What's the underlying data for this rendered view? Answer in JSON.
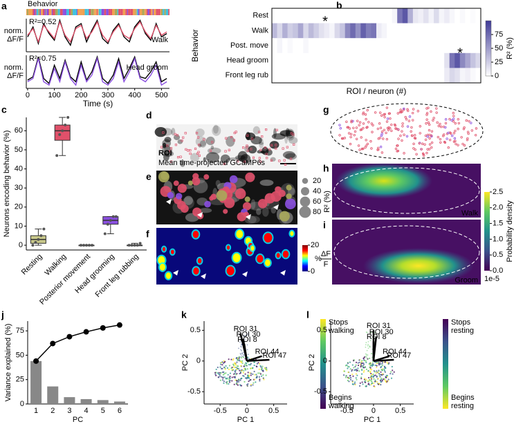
{
  "chart_data": [
    {
      "type": "line",
      "panel": "a",
      "behavior_label": "Behavior",
      "ylabel": [
        "norm.",
        "ΔF/F"
      ],
      "annotation": "R²=0.52",
      "x": [
        0,
        20,
        40,
        60,
        80,
        100,
        120,
        140,
        160,
        180,
        200,
        220,
        240,
        260,
        280,
        300,
        320,
        340,
        360,
        380,
        400,
        420,
        440,
        460,
        480,
        500,
        520
      ],
      "series": [
        {
          "color": "#000000",
          "values": [
            0.45,
            0.75,
            0.25,
            0.85,
            0.55,
            0.35,
            0.95,
            0.45,
            0.2,
            0.75,
            0.85,
            0.3,
            0.65,
            0.95,
            0.4,
            0.25,
            0.65,
            0.85,
            0.45,
            0.3,
            0.75,
            0.95,
            0.55,
            0.35,
            0.85,
            0.45,
            0.55
          ]
        },
        {
          "name": "Walk",
          "color": "#e0506a",
          "values": [
            0.5,
            0.7,
            0.3,
            0.8,
            0.6,
            0.4,
            0.9,
            0.5,
            0.3,
            0.7,
            0.8,
            0.4,
            0.6,
            0.9,
            0.5,
            0.3,
            0.6,
            0.8,
            0.5,
            0.4,
            0.7,
            0.9,
            0.6,
            0.4,
            0.8,
            0.5,
            0.6
          ]
        }
      ],
      "xlim": [
        -5,
        530
      ],
      "ylim": [
        0,
        1
      ]
    },
    {
      "type": "line",
      "ylabel": [
        "norm.",
        "ΔF/F"
      ],
      "annotation": "R²=0.75",
      "x": [
        0,
        20,
        40,
        60,
        80,
        100,
        120,
        140,
        160,
        180,
        200,
        220,
        240,
        260,
        280,
        300,
        320,
        340,
        360,
        380,
        400,
        420,
        440,
        460,
        480,
        500,
        520
      ],
      "series": [
        {
          "color": "#000000",
          "values": [
            0.25,
            0.35,
            0.95,
            0.3,
            0.15,
            0.7,
            0.3,
            0.85,
            0.35,
            0.2,
            0.8,
            0.25,
            0.5,
            0.95,
            0.3,
            0.15,
            0.4,
            0.9,
            0.3,
            0.6,
            0.95,
            0.35,
            0.3,
            0.5,
            0.8,
            0.2,
            0.3
          ]
        },
        {
          "name": "Head groom",
          "color": "#8a4fe0",
          "values": [
            0.2,
            0.3,
            0.9,
            0.2,
            0.1,
            0.6,
            0.2,
            0.8,
            0.3,
            0.1,
            0.7,
            0.2,
            0.4,
            0.9,
            0.2,
            0.1,
            0.3,
            0.8,
            0.2,
            0.5,
            0.9,
            0.3,
            0.2,
            0.4,
            0.7,
            0.1,
            0.2
          ]
        }
      ],
      "xlim": [
        -5,
        530
      ],
      "ylim": [
        0,
        1
      ],
      "xticks": [
        0,
        100,
        200,
        300,
        400,
        500
      ],
      "xlabel": "Time (s)"
    },
    {
      "type": "heatmap",
      "panel": "b",
      "ylabel": "Behavior",
      "xlabel": "ROI / neuron (#)",
      "categories": [
        "Rest",
        "Walk",
        "Post. move",
        "Head groom",
        "Front leg rub"
      ],
      "category_colors": [
        "#a8a85a",
        "#e0506a",
        "#f0a050",
        "#8a4fe0",
        "#40c0e0"
      ],
      "values": [
        [
          0,
          0,
          0,
          0,
          0,
          0,
          0,
          0,
          0,
          0,
          0,
          0,
          0,
          0,
          0,
          0,
          0,
          0,
          0,
          0,
          0,
          0,
          0,
          5,
          70,
          85,
          40,
          12,
          8,
          15,
          6,
          18,
          5,
          10,
          4,
          0,
          3,
          0,
          2,
          0
        ],
        [
          35,
          20,
          40,
          25,
          30,
          45,
          20,
          35,
          25,
          15,
          10,
          5,
          20,
          30,
          60,
          75,
          55,
          80,
          65,
          70,
          10,
          5,
          0,
          0,
          0,
          0,
          0,
          0,
          0,
          0,
          0,
          0,
          0,
          0,
          0,
          0,
          0,
          0,
          0,
          0
        ],
        [
          0,
          5,
          0,
          3,
          0,
          0,
          4,
          0,
          0,
          0,
          0,
          0,
          0,
          0,
          0,
          0,
          0,
          0,
          0,
          0,
          0,
          0,
          0,
          0,
          0,
          0,
          0,
          0,
          0,
          0,
          0,
          0,
          0,
          0,
          0,
          0,
          0,
          0,
          0,
          0
        ],
        [
          0,
          0,
          0,
          0,
          0,
          0,
          0,
          0,
          0,
          0,
          0,
          0,
          0,
          0,
          0,
          0,
          0,
          0,
          0,
          0,
          0,
          0,
          0,
          0,
          0,
          0,
          0,
          0,
          0,
          0,
          0,
          0,
          0,
          15,
          70,
          85,
          60,
          45,
          30,
          20
        ],
        [
          0,
          0,
          0,
          0,
          0,
          0,
          0,
          0,
          0,
          0,
          0,
          0,
          0,
          0,
          0,
          0,
          0,
          0,
          0,
          0,
          0,
          0,
          0,
          0,
          0,
          0,
          0,
          0,
          0,
          0,
          0,
          0,
          0,
          10,
          20,
          15,
          5,
          8,
          3,
          0
        ]
      ],
      "cmap": [
        "#ffffff",
        "#3f3a96"
      ],
      "clim": [
        0,
        100
      ],
      "cticks": [
        0,
        25,
        50,
        75
      ],
      "colorbar_label": "R² (%)",
      "annotations": [
        {
          "text": "*",
          "color": "#e0506a"
        },
        {
          "text": "*",
          "color": "#8a4fe0"
        }
      ]
    },
    {
      "type": "box",
      "panel": "c",
      "ylabel": "Neurons encoding behavior (%)",
      "categories": [
        "Resting",
        "Walking",
        "Posterior movement",
        "Head grooming",
        "Front leg rubbing"
      ],
      "colors": [
        "#c8c88a",
        "#e0506a",
        "#f0a050",
        "#8a4fe0",
        "#40c0e0"
      ],
      "boxes": [
        {
          "min": 0,
          "q1": 1,
          "median": 3,
          "q3": 5,
          "max": 8.5
        },
        {
          "min": 47,
          "q1": 55,
          "median": 60,
          "q3": 63,
          "max": 67
        },
        {
          "min": 0,
          "q1": 0,
          "median": 0,
          "q3": 0,
          "max": 0
        },
        {
          "min": 6,
          "q1": 11,
          "median": 13,
          "q3": 15,
          "max": 15
        },
        {
          "min": 0,
          "q1": 0,
          "median": 0,
          "q3": 0,
          "max": 1
        }
      ],
      "points": [
        [
          0,
          1.5,
          3,
          5,
          8.5
        ],
        [
          47,
          58,
          60,
          63,
          67
        ],
        [
          0,
          0,
          0,
          0,
          0
        ],
        [
          6,
          11,
          13,
          15,
          15
        ],
        [
          0,
          0,
          0,
          0,
          1
        ]
      ],
      "ylim": [
        -2.5,
        67
      ],
      "yticks": [
        0,
        10,
        20,
        30,
        40,
        50,
        60
      ]
    },
    {
      "type": "bar",
      "panel": "j",
      "ylabel": "Variance explained (%)",
      "xlabel": "PC",
      "categories": [
        1,
        2,
        3,
        4,
        5,
        6
      ],
      "values": [
        44,
        18,
        7,
        5,
        4,
        2.5
      ],
      "line_values": [
        44,
        62,
        69,
        74,
        78,
        81
      ],
      "color": "#888888",
      "line_color": "#000000",
      "ylim": [
        0,
        85
      ],
      "yticks": [
        0,
        25,
        50,
        75
      ]
    },
    {
      "type": "biplot",
      "panel": "k",
      "xlabel": "PC 1",
      "ylabel": "PC 2",
      "xlim": [
        -0.8,
        0.75
      ],
      "ylim": [
        -0.7,
        0.65
      ],
      "xticks": [
        -0.5,
        0,
        0.5
      ],
      "yticks": [
        -0.5,
        0,
        0.5
      ],
      "loadings": [
        {
          "name": "ROI 31",
          "x": -0.12,
          "y": 0.45
        },
        {
          "name": "ROI 30",
          "x": -0.07,
          "y": 0.36
        },
        {
          "name": "ROI 8",
          "x": -0.05,
          "y": 0.28
        },
        {
          "name": "ROI 44",
          "x": 0.28,
          "y": 0.08
        },
        {
          "name": "ROI 47",
          "x": 0.42,
          "y": 0.02
        }
      ],
      "colorbar_colors": [
        "#fde725",
        "#5ec962",
        "#21918c",
        "#3b528b",
        "#440154"
      ],
      "colorbar_top": [
        "Stops",
        "walking"
      ],
      "colorbar_bottom": [
        "Begins",
        "walking"
      ]
    },
    {
      "type": "biplot",
      "panel": "l",
      "xlabel": "PC 1",
      "ylabel": "PC 2",
      "xlim": [
        -0.8,
        0.75
      ],
      "ylim": [
        -0.7,
        0.65
      ],
      "xticks": [
        -0.5,
        0,
        0.5
      ],
      "yticks": [
        -0.5,
        0,
        0.5
      ],
      "loadings": [
        {
          "name": "ROI 31",
          "x": 0.0,
          "y": 0.5
        },
        {
          "name": "ROI 30",
          "x": 0.05,
          "y": 0.4
        },
        {
          "name": "ROI 8",
          "x": 0.0,
          "y": 0.32
        },
        {
          "name": "ROI 44",
          "x": 0.3,
          "y": 0.08
        },
        {
          "name": "ROI 47",
          "x": 0.38,
          "y": 0.02
        }
      ],
      "colorbar_colors": [
        "#440154",
        "#3b528b",
        "#21918c",
        "#5ec962",
        "#fde725"
      ],
      "colorbar_top": [
        "Stops",
        "resting"
      ],
      "colorbar_bottom": [
        "Begins",
        "resting"
      ]
    }
  ],
  "images": [
    {
      "panel": "d",
      "labels": [
        "ROI",
        "Mean time-projected GCaMP6s"
      ]
    },
    {
      "panel": "e",
      "size_legend": {
        "values": [
          20,
          40,
          60,
          80
        ],
        "label": "R² (%)"
      }
    },
    {
      "panel": "f",
      "colorbar": {
        "clim": [
          0,
          20
        ],
        "ticks": [
          20,
          0
        ],
        "unit": "%",
        "numerator": "ΔF",
        "denominator": "F",
        "colors": [
          "#800000",
          "#ff0000",
          "#ffff00",
          "#00ffff",
          "#0000ff",
          "#000080"
        ]
      }
    },
    {
      "panel": "g"
    },
    {
      "panel": "h",
      "label": "Walk"
    },
    {
      "panel": "i",
      "label": "Groom",
      "colorbar": {
        "clim": [
          0,
          2.5
        ],
        "ticks": [
          {
            "value": 0,
            "label": "0.0"
          },
          0.5,
          {
            "value": 1,
            "label": "1.0"
          },
          1.5,
          {
            "value": 2,
            "label": "2.0"
          },
          2.5
        ],
        "label": "Probability density",
        "scale": "1e-5",
        "colors": [
          "#fde725",
          "#5ec962",
          "#21918c",
          "#3b528b",
          "#440154"
        ]
      }
    }
  ]
}
